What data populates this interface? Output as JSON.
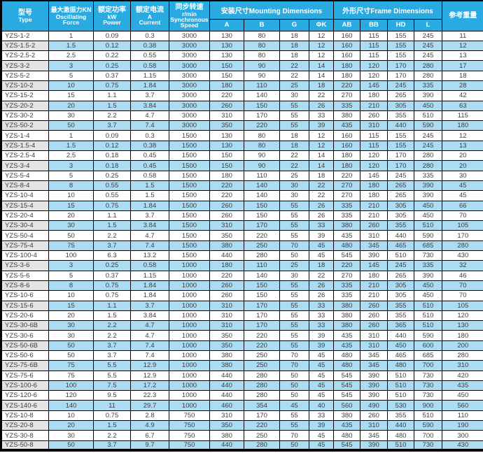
{
  "table": {
    "title_semantic": "YZS vibration motor specification table",
    "colors": {
      "header_bg": "#29abe2",
      "alt_row_bg": "#abdcf3",
      "alt_type_bg": "#e4e4e4",
      "border": "#000000",
      "header_text": "#ffffff",
      "data_text": "#3d3d3d"
    },
    "headers": {
      "type_zh": "型号",
      "type_en": "Type",
      "force_zh": "最大激振力KN",
      "force_en1": "Oscillating",
      "force_en2": "Force",
      "power_zh": "额定功率",
      "power_en1": "kW",
      "power_en2": "Power",
      "current_zh": "额定电流",
      "current_en1": "A",
      "current_en2": "Current",
      "speed_zh": "同步转速",
      "speed_en1": "r/min",
      "speed_en2": "Synchronous",
      "speed_en3": "Speed",
      "mounting_group": "安装尺寸Mounting Dimensions",
      "frame_group": "外形尺寸Frame Dimensions",
      "weight": "参考重量",
      "mounting_cols": [
        "A",
        "B",
        "G",
        "ΦK"
      ],
      "frame_cols": [
        "AB",
        "BB",
        "HD",
        "L"
      ]
    },
    "rows": [
      [
        "YZS-1-2",
        "1",
        "0.09",
        "0.3",
        "3000",
        "130",
        "80",
        "18",
        "12",
        "160",
        "115",
        "155",
        "245",
        "11"
      ],
      [
        "YZS-1.5-2",
        "1.5",
        "0.12",
        "0.38",
        "3000",
        "130",
        "80",
        "18",
        "12",
        "160",
        "115",
        "155",
        "245",
        "12"
      ],
      [
        "YZS-2.5-2",
        "2.5",
        "0.22",
        "0.55",
        "3000",
        "130",
        "80",
        "18",
        "12",
        "160",
        "115",
        "155",
        "245",
        "13"
      ],
      [
        "YZS-3-2",
        "3",
        "0.25",
        "0.58",
        "3000",
        "150",
        "90",
        "22",
        "14",
        "180",
        "120",
        "170",
        "280",
        "17"
      ],
      [
        "YZS-5-2",
        "5",
        "0.37",
        "1.15",
        "3000",
        "150",
        "90",
        "22",
        "14",
        "180",
        "120",
        "170",
        "280",
        "18"
      ],
      [
        "YZS-10-2",
        "10",
        "0.75",
        "1.84",
        "3000",
        "180",
        "110",
        "25",
        "18",
        "220",
        "145",
        "245",
        "335",
        "28"
      ],
      [
        "YZS-15-2",
        "15",
        "1.1",
        "3.7",
        "3000",
        "220",
        "140",
        "30",
        "22",
        "270",
        "180",
        "265",
        "390",
        "42"
      ],
      [
        "YZS-20-2",
        "20",
        "1.5",
        "3.84",
        "3000",
        "260",
        "150",
        "55",
        "26",
        "335",
        "210",
        "305",
        "450",
        "63"
      ],
      [
        "YZS-30-2",
        "30",
        "2.2",
        "4.7",
        "3000",
        "310",
        "170",
        "55",
        "33",
        "380",
        "260",
        "355",
        "510",
        "115"
      ],
      [
        "YZS-50-2",
        "50",
        "3.7",
        "7.4",
        "3000",
        "350",
        "220",
        "55",
        "39",
        "435",
        "310",
        "440",
        "590",
        "180"
      ],
      [
        "YZS-1-4",
        "1",
        "0.09",
        "0.3",
        "1500",
        "130",
        "80",
        "18",
        "12",
        "160",
        "115",
        "155",
        "245",
        "12"
      ],
      [
        "YZS-1.5-4",
        "1.5",
        "0.12",
        "0.38",
        "1500",
        "130",
        "80",
        "18",
        "12",
        "160",
        "115",
        "155",
        "245",
        "13"
      ],
      [
        "YZS-2.5-4",
        "2.5",
        "0.18",
        "0.45",
        "1500",
        "150",
        "90",
        "22",
        "14",
        "180",
        "120",
        "170",
        "280",
        "20"
      ],
      [
        "YZS-3-4",
        "3",
        "0.18",
        "0.45",
        "1500",
        "150",
        "90",
        "22",
        "14",
        "180",
        "120",
        "170",
        "280",
        "20"
      ],
      [
        "YZS-5-4",
        "5",
        "0.25",
        "0.58",
        "1500",
        "180",
        "110",
        "25",
        "18",
        "220",
        "145",
        "245",
        "335",
        "30"
      ],
      [
        "YZS-8-4",
        "8",
        "0.55",
        "1.5",
        "1500",
        "220",
        "140",
        "30",
        "22",
        "270",
        "180",
        "265",
        "390",
        "45"
      ],
      [
        "YZS-10-4",
        "10",
        "0.55",
        "1.5",
        "1500",
        "220",
        "140",
        "30",
        "22",
        "270",
        "180",
        "265",
        "390",
        "45"
      ],
      [
        "YZS-15-4",
        "15",
        "0.75",
        "1.84",
        "1500",
        "260",
        "150",
        "55",
        "26",
        "335",
        "210",
        "305",
        "450",
        "66"
      ],
      [
        "YZS-20-4",
        "20",
        "1.1",
        "3.7",
        "1500",
        "260",
        "150",
        "55",
        "26",
        "335",
        "210",
        "305",
        "450",
        "70"
      ],
      [
        "YZS-30-4",
        "30",
        "1.5",
        "3.84",
        "1500",
        "310",
        "170",
        "55",
        "33",
        "380",
        "260",
        "355",
        "510",
        "105"
      ],
      [
        "YZS-50-4",
        "50",
        "2.2",
        "4.7",
        "1500",
        "350",
        "220",
        "55",
        "39",
        "435",
        "310",
        "440",
        "590",
        "170"
      ],
      [
        "YZS-75-4",
        "75",
        "3.7",
        "7.4",
        "1500",
        "380",
        "250",
        "70",
        "45",
        "480",
        "345",
        "465",
        "685",
        "280"
      ],
      [
        "YZS-100-4",
        "100",
        "6.3",
        "13.2",
        "1500",
        "440",
        "280",
        "50",
        "45",
        "545",
        "390",
        "510",
        "730",
        "430"
      ],
      [
        "YZS-3-6",
        "3",
        "0.25",
        "0.58",
        "1000",
        "180",
        "110",
        "25",
        "18",
        "220",
        "145",
        "245",
        "335",
        "32"
      ],
      [
        "YZS-5-6",
        "5",
        "0.37",
        "1.15",
        "1000",
        "220",
        "140",
        "30",
        "22",
        "270",
        "180",
        "265",
        "390",
        "46"
      ],
      [
        "YZS-8-6",
        "8",
        "0.75",
        "1.84",
        "1000",
        "260",
        "150",
        "55",
        "26",
        "335",
        "210",
        "305",
        "450",
        "70"
      ],
      [
        "YZS-10-6",
        "10",
        "0.75",
        "1.84",
        "1000",
        "260",
        "150",
        "55",
        "26",
        "335",
        "210",
        "305",
        "450",
        "70"
      ],
      [
        "YZS-15-6",
        "15",
        "1.1",
        "3.7",
        "1000",
        "310",
        "170",
        "55",
        "33",
        "380",
        "260",
        "355",
        "510",
        "105"
      ],
      [
        "YZS-20-6",
        "20",
        "1.5",
        "3.84",
        "1000",
        "310",
        "170",
        "55",
        "33",
        "380",
        "260",
        "355",
        "510",
        "120"
      ],
      [
        "YZS-30-6B",
        "30",
        "2.2",
        "4.7",
        "1000",
        "310",
        "170",
        "55",
        "33",
        "380",
        "260",
        "365",
        "510",
        "130"
      ],
      [
        "YZS-30-6",
        "30",
        "2.2",
        "4.7",
        "1000",
        "350",
        "220",
        "55",
        "39",
        "435",
        "310",
        "440",
        "590",
        "180"
      ],
      [
        "YZS-50-6B",
        "50",
        "3.7",
        "7.4",
        "1000",
        "350",
        "220",
        "55",
        "39",
        "435",
        "310",
        "450",
        "600",
        "200"
      ],
      [
        "YZS-50-6",
        "50",
        "3.7",
        "7.4",
        "1000",
        "380",
        "250",
        "70",
        "45",
        "480",
        "345",
        "465",
        "685",
        "280"
      ],
      [
        "YZS-75-6B",
        "75",
        "5.5",
        "12.9",
        "1000",
        "380",
        "250",
        "70",
        "45",
        "480",
        "345",
        "480",
        "700",
        "310"
      ],
      [
        "YZS-75-6",
        "75",
        "5.5",
        "12.9",
        "1000",
        "440",
        "280",
        "50",
        "45",
        "545",
        "390",
        "510",
        "730",
        "420"
      ],
      [
        "YZS-100-6",
        "100",
        "7.5",
        "17.2",
        "1000",
        "440",
        "280",
        "50",
        "45",
        "545",
        "390",
        "510",
        "730",
        "435"
      ],
      [
        "YZS-120-6",
        "120",
        "9.5",
        "22.3",
        "1000",
        "440",
        "280",
        "50",
        "45",
        "545",
        "390",
        "510",
        "730",
        "450"
      ],
      [
        "YZS-140-6",
        "140",
        "11",
        "29.7",
        "1000",
        "460",
        "354",
        "45",
        "40",
        "560",
        "490",
        "530",
        "900",
        "560"
      ],
      [
        "YZS-10-8",
        "10",
        "0.75",
        "2.8",
        "750",
        "310",
        "170",
        "55",
        "33",
        "380",
        "260",
        "355",
        "510",
        "110"
      ],
      [
        "YZS-20-8",
        "20",
        "1.5",
        "4.9",
        "750",
        "350",
        "220",
        "55",
        "39",
        "435",
        "310",
        "440",
        "590",
        "190"
      ],
      [
        "YZS-30-8",
        "30",
        "2.2",
        "6.7",
        "750",
        "380",
        "250",
        "70",
        "45",
        "480",
        "345",
        "480",
        "700",
        "300"
      ],
      [
        "YZS-50-8",
        "50",
        "3.7",
        "9.7",
        "750",
        "440",
        "280",
        "50",
        "45",
        "545",
        "390",
        "510",
        "730",
        "430"
      ]
    ]
  }
}
